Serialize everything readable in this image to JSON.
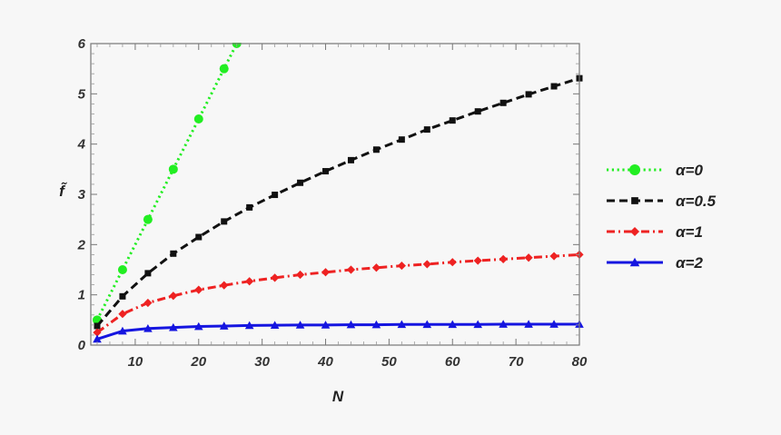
{
  "chart_data": {
    "type": "line",
    "xlabel": "N",
    "ylabel": "f̃",
    "xlim": [
      3,
      80
    ],
    "ylim": [
      0,
      6
    ],
    "x_ticks": [
      10,
      20,
      30,
      40,
      50,
      60,
      70,
      80
    ],
    "y_ticks": [
      0,
      1,
      2,
      3,
      4,
      5,
      6
    ],
    "grid": false,
    "legend_position": "right",
    "series": [
      {
        "name": "α=0",
        "color": "#22ee22",
        "line_style": "dotted",
        "marker": "circle",
        "x": [
          4,
          8,
          12,
          16,
          20,
          24,
          26
        ],
        "y": [
          0.5,
          1.5,
          2.5,
          3.5,
          4.5,
          5.5,
          6.0
        ]
      },
      {
        "name": "α=0.5",
        "color": "#111111",
        "line_style": "dashed",
        "marker": "square",
        "x": [
          4,
          8,
          12,
          16,
          20,
          24,
          28,
          32,
          36,
          40,
          44,
          48,
          52,
          56,
          60,
          64,
          68,
          72,
          76,
          80
        ],
        "y": [
          0.38,
          0.97,
          1.43,
          1.82,
          2.15,
          2.46,
          2.74,
          2.99,
          3.23,
          3.46,
          3.68,
          3.89,
          4.09,
          4.29,
          4.47,
          4.65,
          4.82,
          4.99,
          5.15,
          5.31
        ]
      },
      {
        "name": "α=1",
        "color": "#ee2222",
        "line_style": "dashdot",
        "marker": "diamond",
        "x": [
          4,
          8,
          12,
          16,
          20,
          24,
          28,
          32,
          36,
          40,
          44,
          48,
          52,
          56,
          60,
          64,
          68,
          72,
          76,
          80
        ],
        "y": [
          0.25,
          0.62,
          0.84,
          0.98,
          1.1,
          1.19,
          1.27,
          1.34,
          1.4,
          1.45,
          1.5,
          1.54,
          1.58,
          1.61,
          1.65,
          1.68,
          1.71,
          1.74,
          1.77,
          1.8
        ]
      },
      {
        "name": "α=2",
        "color": "#1515e0",
        "line_style": "solid",
        "marker": "triangle",
        "x": [
          4,
          8,
          12,
          16,
          20,
          24,
          28,
          32,
          36,
          40,
          44,
          48,
          52,
          56,
          60,
          64,
          68,
          72,
          76,
          80
        ],
        "y": [
          0.12,
          0.28,
          0.33,
          0.35,
          0.37,
          0.38,
          0.39,
          0.395,
          0.4,
          0.4,
          0.405,
          0.405,
          0.41,
          0.41,
          0.41,
          0.41,
          0.415,
          0.415,
          0.415,
          0.415
        ]
      }
    ]
  }
}
